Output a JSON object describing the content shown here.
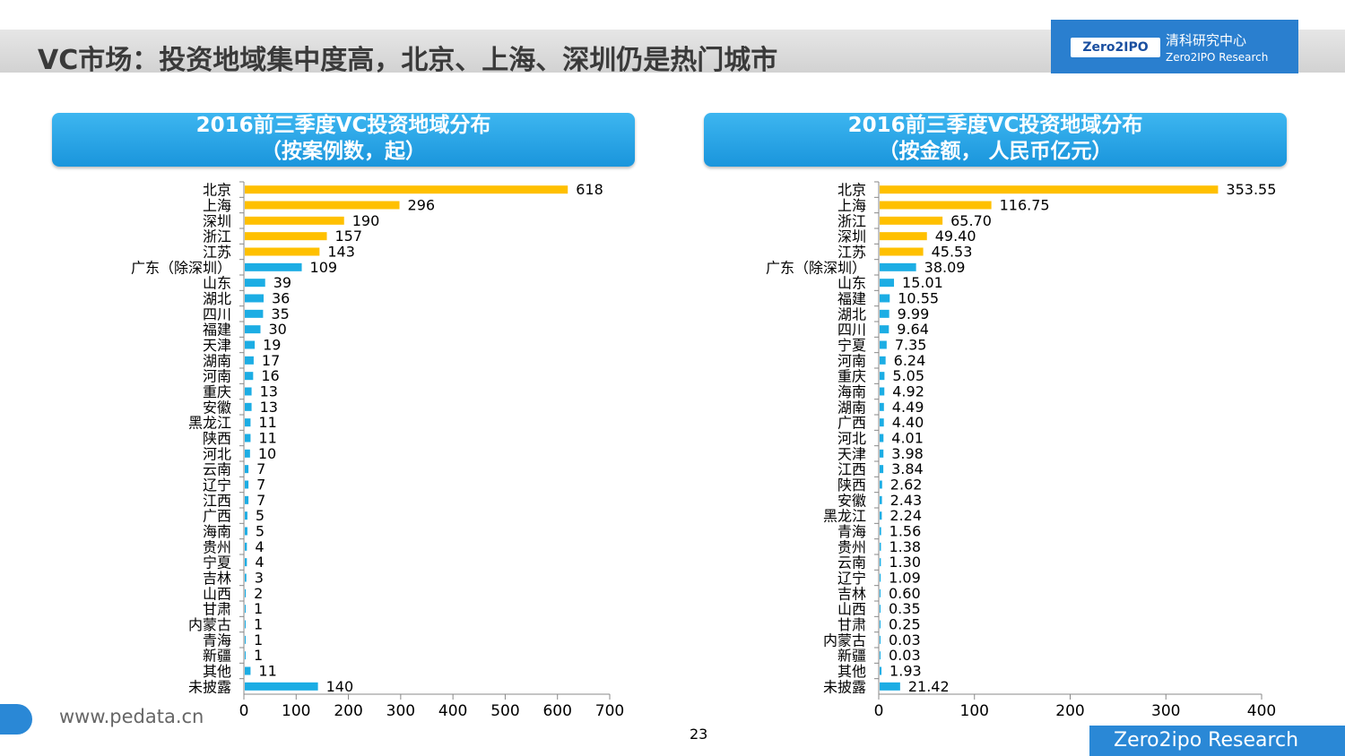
{
  "title": "VC市场：投资地域集中度高，北京、上海、深圳仍是热门城市",
  "logo": {
    "mark": "Zero2IPO",
    "cn": "清科研究中心",
    "en": "Zero2IPO Research"
  },
  "footer": {
    "url": "www.pedata.cn",
    "page": "23",
    "brand": "Zero2ipo Research"
  },
  "colors": {
    "top": "#FFC000",
    "rest": "#1CADE4"
  },
  "chart_data": [
    {
      "type": "bar",
      "orientation": "horizontal",
      "title_line1": "2016前三季度VC投资地域分布",
      "title_line2": "（按案例数，起）",
      "categories": [
        "北京",
        "上海",
        "深圳",
        "浙江",
        "江苏",
        "广东（除深圳）",
        "山东",
        "湖北",
        "四川",
        "福建",
        "天津",
        "湖南",
        "河南",
        "重庆",
        "安徽",
        "黑龙江",
        "陕西",
        "河北",
        "云南",
        "辽宁",
        "江西",
        "广西",
        "海南",
        "贵州",
        "宁夏",
        "吉林",
        "山西",
        "甘肃",
        "内蒙古",
        "青海",
        "新疆",
        "其他",
        "未披露"
      ],
      "values": [
        618,
        296,
        190,
        157,
        143,
        109,
        39,
        36,
        35,
        30,
        19,
        17,
        16,
        13,
        13,
        11,
        11,
        10,
        7,
        7,
        7,
        5,
        5,
        4,
        4,
        3,
        2,
        1,
        1,
        1,
        1,
        11,
        140
      ],
      "value_labels": [
        "618",
        "296",
        "190",
        "157",
        "143",
        "109",
        "39",
        "36",
        "35",
        "30",
        "19",
        "17",
        "16",
        "13",
        "13",
        "11",
        "11",
        "10",
        "7",
        "7",
        "7",
        "5",
        "5",
        "4",
        "4",
        "3",
        "2",
        "1",
        "1",
        "1",
        "1",
        "11",
        "140"
      ],
      "highlight_count": 5,
      "xlim": [
        0,
        700
      ],
      "xticks": [
        "0",
        "100",
        "200",
        "300",
        "400",
        "500",
        "600",
        "700"
      ]
    },
    {
      "type": "bar",
      "orientation": "horizontal",
      "title_line1": "2016前三季度VC投资地域分布",
      "title_line2": "（按金额， 人民币亿元）",
      "categories": [
        "北京",
        "上海",
        "浙江",
        "深圳",
        "江苏",
        "广东（除深圳）",
        "山东",
        "福建",
        "湖北",
        "四川",
        "宁夏",
        "河南",
        "重庆",
        "海南",
        "湖南",
        "广西",
        "河北",
        "天津",
        "江西",
        "陕西",
        "安徽",
        "黑龙江",
        "青海",
        "贵州",
        "云南",
        "辽宁",
        "吉林",
        "山西",
        "甘肃",
        "内蒙古",
        "新疆",
        "其他",
        "未披露"
      ],
      "values": [
        353.55,
        116.75,
        65.7,
        49.4,
        45.53,
        38.09,
        15.01,
        10.55,
        9.99,
        9.64,
        7.35,
        6.24,
        5.05,
        4.92,
        4.49,
        4.4,
        4.01,
        3.98,
        3.84,
        2.62,
        2.43,
        2.24,
        1.56,
        1.38,
        1.3,
        1.09,
        0.6,
        0.35,
        0.25,
        0.03,
        0.03,
        1.93,
        21.42
      ],
      "value_labels": [
        "353.55",
        "116.75",
        "65.70",
        "49.40",
        "45.53",
        "38.09",
        "15.01",
        "10.55",
        "9.99",
        "9.64",
        "7.35",
        "6.24",
        "5.05",
        "4.92",
        "4.49",
        "4.40",
        "4.01",
        "3.98",
        "3.84",
        "2.62",
        "2.43",
        "2.24",
        "1.56",
        "1.38",
        "1.30",
        "1.09",
        "0.60",
        "0.35",
        "0.25",
        "0.03",
        "0.03",
        "1.93",
        "21.42"
      ],
      "highlight_count": 5,
      "xlim": [
        0,
        400
      ],
      "xticks": [
        "0",
        "100",
        "200",
        "300",
        "400"
      ]
    }
  ]
}
